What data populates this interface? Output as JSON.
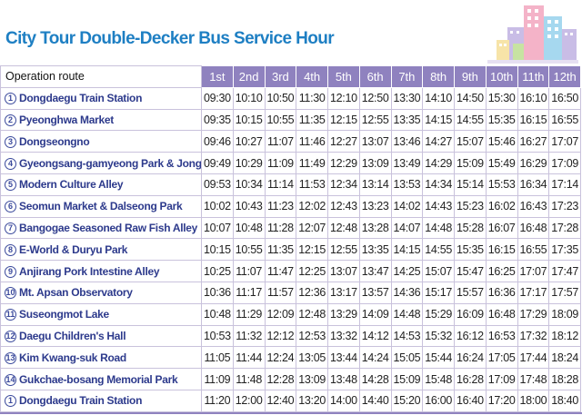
{
  "title": "City Tour Double-Decker Bus Service Hour",
  "header": {
    "route_label": "Operation route",
    "trips": [
      "1st",
      "2nd",
      "3rd",
      "4th",
      "5th",
      "6th",
      "7th",
      "8th",
      "9th",
      "10th",
      "11th",
      "12th"
    ]
  },
  "stops": [
    {
      "num": "1",
      "name": "Dongdaegu Train Station",
      "times": [
        "09:30",
        "10:10",
        "10:50",
        "11:30",
        "12:10",
        "12:50",
        "13:30",
        "14:10",
        "14:50",
        "15:30",
        "16:10",
        "16:50"
      ]
    },
    {
      "num": "2",
      "name": "Pyeonghwa Market",
      "times": [
        "09:35",
        "10:15",
        "10:55",
        "11:35",
        "12:15",
        "12:55",
        "13:35",
        "14:15",
        "14:55",
        "15:35",
        "16:15",
        "16:55"
      ]
    },
    {
      "num": "3",
      "name": "Dongseongno",
      "times": [
        "09:46",
        "10:27",
        "11:07",
        "11:46",
        "12:27",
        "13:07",
        "13:46",
        "14:27",
        "15:07",
        "15:46",
        "16:27",
        "17:07"
      ]
    },
    {
      "num": "4",
      "name": "Gyeongsang-gamyeong Park & Jongno",
      "times": [
        "09:49",
        "10:29",
        "11:09",
        "11:49",
        "12:29",
        "13:09",
        "13:49",
        "14:29",
        "15:09",
        "15:49",
        "16:29",
        "17:09"
      ]
    },
    {
      "num": "5",
      "name": "Modern Culture Alley",
      "times": [
        "09:53",
        "10:34",
        "11:14",
        "11:53",
        "12:34",
        "13:14",
        "13:53",
        "14:34",
        "15:14",
        "15:53",
        "16:34",
        "17:14"
      ]
    },
    {
      "num": "6",
      "name": "Seomun Market & Dalseong Park",
      "times": [
        "10:02",
        "10:43",
        "11:23",
        "12:02",
        "12:43",
        "13:23",
        "14:02",
        "14:43",
        "15:23",
        "16:02",
        "16:43",
        "17:23"
      ]
    },
    {
      "num": "7",
      "name": "Bangogae Seasoned Raw Fish Alley",
      "times": [
        "10:07",
        "10:48",
        "11:28",
        "12:07",
        "12:48",
        "13:28",
        "14:07",
        "14:48",
        "15:28",
        "16:07",
        "16:48",
        "17:28"
      ]
    },
    {
      "num": "8",
      "name": "E-World & Duryu Park",
      "times": [
        "10:15",
        "10:55",
        "11:35",
        "12:15",
        "12:55",
        "13:35",
        "14:15",
        "14:55",
        "15:35",
        "16:15",
        "16:55",
        "17:35"
      ]
    },
    {
      "num": "9",
      "name": "Anjirang Pork Intestine Alley",
      "times": [
        "10:25",
        "11:07",
        "11:47",
        "12:25",
        "13:07",
        "13:47",
        "14:25",
        "15:07",
        "15:47",
        "16:25",
        "17:07",
        "17:47"
      ]
    },
    {
      "num": "10",
      "name": "Mt. Apsan Observatory",
      "times": [
        "10:36",
        "11:17",
        "11:57",
        "12:36",
        "13:17",
        "13:57",
        "14:36",
        "15:17",
        "15:57",
        "16:36",
        "17:17",
        "17:57"
      ]
    },
    {
      "num": "11",
      "name": "Suseongmot Lake",
      "times": [
        "10:48",
        "11:29",
        "12:09",
        "12:48",
        "13:29",
        "14:09",
        "14:48",
        "15:29",
        "16:09",
        "16:48",
        "17:29",
        "18:09"
      ]
    },
    {
      "num": "12",
      "name": "Daegu Children's Hall",
      "times": [
        "10:53",
        "11:32",
        "12:12",
        "12:53",
        "13:32",
        "14:12",
        "14:53",
        "15:32",
        "16:12",
        "16:53",
        "17:32",
        "18:12"
      ]
    },
    {
      "num": "13",
      "name": "Kim Kwang-suk Road",
      "times": [
        "11:05",
        "11:44",
        "12:24",
        "13:05",
        "13:44",
        "14:24",
        "15:05",
        "15:44",
        "16:24",
        "17:05",
        "17:44",
        "18:24"
      ]
    },
    {
      "num": "14",
      "name": "Gukchae-bosang Memorial Park",
      "times": [
        "11:09",
        "11:48",
        "12:28",
        "13:09",
        "13:48",
        "14:28",
        "15:09",
        "15:48",
        "16:28",
        "17:09",
        "17:48",
        "18:28"
      ]
    },
    {
      "num": "1",
      "name": "Dongdaegu Train Station",
      "times": [
        "11:20",
        "12:00",
        "12:40",
        "13:20",
        "14:00",
        "14:40",
        "15:20",
        "16:00",
        "16:40",
        "17:20",
        "18:00",
        "18:40"
      ]
    }
  ],
  "colors": {
    "title": "#1e7fc3",
    "header_bg": "#8f82bf",
    "stop_text": "#2d3a8c",
    "grid": "#c9c2dc"
  },
  "decoration": "city-buildings-icon"
}
